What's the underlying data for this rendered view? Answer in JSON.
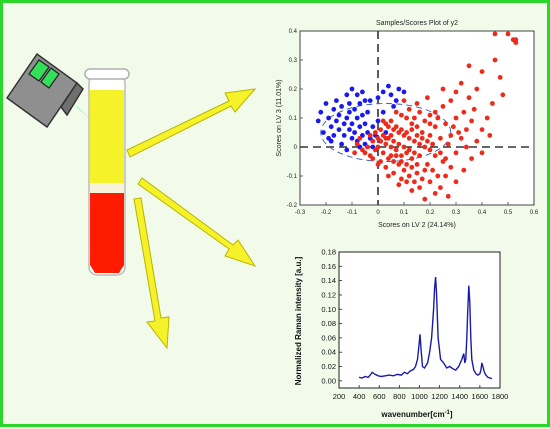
{
  "colors": {
    "border": "#2bd62b",
    "background": "#f2fbea",
    "yellow": "#f5f22a",
    "red": "#ff1b00",
    "laser_beam": "#3cf08c",
    "scores_class_a": "#1a1aee",
    "scores_class_b": "#ee2a1a",
    "spectrum_line": "#1a1aaa"
  },
  "icons": {
    "laser": "laser-head-icon",
    "tube": "test-tube-icon",
    "arrows": "yellow-arrow-icon"
  },
  "chart_data": [
    {
      "type": "scatter",
      "title": "Samples/Scores Plot of y2",
      "xlabel": "Scores on LV 2 (24.14%)",
      "ylabel": "Scores on LV 3 (11.01%)",
      "xlim": [
        -0.3,
        0.6
      ],
      "ylim": [
        -0.2,
        0.4
      ],
      "xticks": [
        "-0.3",
        "-0.2",
        "-0.1",
        "0",
        "0.1",
        "0.2",
        "0.3",
        "0.4",
        "0.5",
        "0.6"
      ],
      "yticks": [
        "-0.2",
        "-0.1",
        "0",
        "0.1",
        "0.2",
        "0.3",
        "0.4"
      ],
      "reference_lines": {
        "x": 0,
        "y": 0
      },
      "confidence_ellipse": {
        "cx": 0.03,
        "cy": 0.05,
        "rx": 0.25,
        "ry": 0.1
      },
      "series": [
        {
          "color": "blue",
          "points": [
            [
              -0.22,
              0.12
            ],
            [
              -0.2,
              0.15
            ],
            [
              -0.19,
              0.1
            ],
            [
              -0.18,
              0.07
            ],
            [
              -0.17,
              0.13
            ],
            [
              -0.16,
              0.09
            ],
            [
              -0.15,
              0.06
            ],
            [
              -0.15,
              0.11
            ],
            [
              -0.14,
              0.14
            ],
            [
              -0.13,
              0.08
            ],
            [
              -0.13,
              0.04
            ],
            [
              -0.12,
              0.1
            ],
            [
              -0.11,
              0.06
            ],
            [
              -0.11,
              0.12
            ],
            [
              -0.1,
              0.03
            ],
            [
              -0.1,
              0.08
            ],
            [
              -0.09,
              0.13
            ],
            [
              -0.09,
              0.05
            ],
            [
              -0.08,
              0.1
            ],
            [
              -0.08,
              0.02
            ],
            [
              -0.07,
              0.07
            ],
            [
              -0.07,
              0.15
            ],
            [
              -0.06,
              0.04
            ],
            [
              -0.06,
              0.11
            ],
            [
              -0.05,
              0.08
            ],
            [
              -0.05,
              0.01
            ],
            [
              -0.04,
              0.05
            ],
            [
              -0.04,
              0.12
            ],
            [
              -0.03,
              0.03
            ],
            [
              -0.02,
              0.07
            ],
            [
              -0.02,
              0.0
            ],
            [
              -0.01,
              0.04
            ],
            [
              0.0,
              0.09
            ],
            [
              0.01,
              0.02
            ],
            [
              -0.1,
              0.2
            ],
            [
              -0.08,
              0.18
            ],
            [
              -0.06,
              0.19
            ],
            [
              0.0,
              0.17
            ],
            [
              0.02,
              0.19
            ],
            [
              0.05,
              0.18
            ],
            [
              0.08,
              0.2
            ],
            [
              0.1,
              0.19
            ],
            [
              -0.12,
              0.18
            ],
            [
              -0.03,
              0.16
            ],
            [
              0.04,
              0.21
            ],
            [
              -0.21,
              0.05
            ],
            [
              -0.18,
              0.02
            ],
            [
              -0.14,
              0.01
            ],
            [
              -0.12,
              -0.01
            ],
            [
              -0.16,
              0.16
            ],
            [
              -0.19,
              0.03
            ],
            [
              -0.07,
              0.0
            ],
            [
              0.03,
              0.05
            ],
            [
              0.02,
              0.12
            ],
            [
              -0.23,
              0.09
            ],
            [
              -0.17,
              0.04
            ],
            [
              -0.11,
              0.15
            ],
            [
              -0.05,
              0.16
            ],
            [
              0.06,
              0.14
            ],
            [
              0.07,
              0.16
            ]
          ]
        },
        {
          "color": "red",
          "points": [
            [
              0.45,
              0.39
            ],
            [
              0.5,
              0.39
            ],
            [
              0.52,
              0.37
            ],
            [
              0.53,
              0.36
            ],
            [
              0.53,
              0.37
            ],
            [
              0.45,
              0.3
            ],
            [
              0.4,
              0.26
            ],
            [
              0.32,
              0.22
            ],
            [
              0.3,
              0.19
            ],
            [
              0.35,
              0.17
            ],
            [
              0.38,
              0.2
            ],
            [
              0.28,
              0.16
            ],
            [
              0.25,
              0.14
            ],
            [
              0.22,
              0.12
            ],
            [
              0.2,
              0.11
            ],
            [
              0.18,
              0.09
            ],
            [
              0.22,
              0.07
            ],
            [
              0.26,
              0.08
            ],
            [
              0.3,
              0.1
            ],
            [
              0.33,
              0.12
            ],
            [
              0.36,
              0.09
            ],
            [
              0.4,
              0.06
            ],
            [
              0.43,
              0.04
            ],
            [
              0.38,
              0.02
            ],
            [
              0.34,
              0.0
            ],
            [
              0.3,
              -0.02
            ],
            [
              0.27,
              0.01
            ],
            [
              0.24,
              0.03
            ],
            [
              0.2,
              0.04
            ],
            [
              0.17,
              0.05
            ],
            [
              0.15,
              0.07
            ],
            [
              0.13,
              0.08
            ],
            [
              0.11,
              0.1
            ],
            [
              0.09,
              0.11
            ],
            [
              0.07,
              0.12
            ],
            [
              0.05,
              0.09
            ],
            [
              0.03,
              0.08
            ],
            [
              0.06,
              0.06
            ],
            [
              0.08,
              0.05
            ],
            [
              0.1,
              0.04
            ],
            [
              0.12,
              0.03
            ],
            [
              0.14,
              0.02
            ],
            [
              0.16,
              0.01
            ],
            [
              0.18,
              0.0
            ],
            [
              0.2,
              -0.01
            ],
            [
              0.22,
              -0.03
            ],
            [
              0.25,
              -0.05
            ],
            [
              0.28,
              -0.07
            ],
            [
              0.23,
              -0.1
            ],
            [
              0.2,
              -0.12
            ],
            [
              0.18,
              -0.08
            ],
            [
              0.15,
              -0.06
            ],
            [
              0.13,
              -0.04
            ],
            [
              0.11,
              -0.02
            ],
            [
              0.09,
              -0.03
            ],
            [
              0.07,
              -0.01
            ],
            [
              0.05,
              0.0
            ],
            [
              0.03,
              0.01
            ],
            [
              0.01,
              0.02
            ],
            [
              0.0,
              0.03
            ],
            [
              -0.02,
              0.02
            ],
            [
              -0.04,
              0.0
            ],
            [
              -0.06,
              -0.01
            ],
            [
              -0.08,
              0.01
            ],
            [
              -0.05,
              -0.02
            ],
            [
              -0.03,
              -0.03
            ],
            [
              -0.01,
              -0.01
            ],
            [
              0.02,
              -0.02
            ],
            [
              0.04,
              -0.04
            ],
            [
              0.06,
              -0.05
            ],
            [
              0.08,
              -0.06
            ],
            [
              0.1,
              -0.08
            ],
            [
              0.12,
              -0.1
            ],
            [
              0.14,
              -0.12
            ],
            [
              0.16,
              -0.14
            ],
            [
              0.24,
              -0.14
            ],
            [
              0.27,
              -0.17
            ],
            [
              0.3,
              -0.12
            ],
            [
              0.33,
              -0.08
            ],
            [
              0.36,
              -0.04
            ],
            [
              0.4,
              -0.02
            ],
            [
              0.42,
              0.1
            ],
            [
              0.44,
              0.15
            ],
            [
              0.47,
              0.24
            ],
            [
              0.48,
              0.18
            ],
            [
              0.35,
              0.28
            ],
            [
              0.25,
              0.2
            ],
            [
              0.15,
              0.15
            ],
            [
              0.12,
              0.13
            ],
            [
              0.1,
              0.16
            ],
            [
              0.19,
              0.17
            ],
            [
              0.28,
              0.04
            ],
            [
              0.31,
              0.05
            ],
            [
              0.34,
              0.06
            ],
            [
              0.37,
              0.13
            ],
            [
              0.26,
              -0.1
            ],
            [
              0.22,
              -0.16
            ],
            [
              0.18,
              -0.18
            ],
            [
              0.13,
              -0.15
            ],
            [
              0.09,
              -0.11
            ],
            [
              0.06,
              -0.09
            ],
            [
              0.03,
              -0.07
            ],
            [
              0.01,
              -0.05
            ],
            [
              -0.02,
              -0.04
            ],
            [
              0.0,
              0.0
            ],
            [
              0.02,
              0.04
            ],
            [
              0.04,
              0.03
            ],
            [
              0.06,
              0.02
            ],
            [
              0.08,
              0.01
            ],
            [
              0.1,
              0.0
            ],
            [
              0.12,
              -0.01
            ],
            [
              0.14,
              -0.02
            ],
            [
              0.16,
              -0.03
            ],
            [
              0.05,
              0.04
            ],
            [
              0.07,
              0.07
            ],
            [
              0.09,
              0.06
            ],
            [
              0.11,
              0.05
            ],
            [
              0.13,
              0.06
            ],
            [
              0.15,
              0.04
            ],
            [
              0.17,
              0.03
            ],
            [
              0.19,
              0.02
            ],
            [
              0.21,
              0.01
            ],
            [
              -0.01,
              0.05
            ],
            [
              0.01,
              0.06
            ],
            [
              0.03,
              0.03
            ],
            [
              0.05,
              -0.03
            ],
            [
              0.07,
              -0.03
            ],
            [
              0.09,
              -0.05
            ],
            [
              0.11,
              -0.06
            ],
            [
              0.13,
              -0.07
            ],
            [
              0.15,
              -0.09
            ],
            [
              0.17,
              -0.11
            ],
            [
              0.19,
              -0.06
            ],
            [
              0.21,
              -0.08
            ],
            [
              0.24,
              -0.02
            ],
            [
              0.26,
              -0.04
            ],
            [
              0.29,
              0.07
            ],
            [
              0.32,
              0.03
            ],
            [
              0.2,
              0.08
            ],
            [
              0.23,
              0.1
            ],
            [
              0.16,
              0.12
            ],
            [
              0.14,
              0.1
            ],
            [
              0.04,
              0.07
            ],
            [
              0.02,
              0.09
            ],
            [
              -0.03,
              0.04
            ],
            [
              -0.07,
              0.03
            ],
            [
              -0.09,
              -0.02
            ],
            [
              0.0,
              -0.06
            ],
            [
              0.04,
              -0.1
            ],
            [
              0.08,
              -0.13
            ],
            [
              0.11,
              -0.12
            ]
          ]
        }
      ]
    },
    {
      "type": "line",
      "xlabel": "wavenumber",
      "xlabel_unit_base": "[cm",
      "xlabel_unit_exp": "-1",
      "xlabel_unit_close": "]",
      "ylabel": "Normalized Raman intensity [a.u.]",
      "xlim": [
        200,
        1800
      ],
      "ylim": [
        -0.01,
        0.18
      ],
      "xticks": [
        "200",
        "400",
        "600",
        "800",
        "1000",
        "1200",
        "1400",
        "1600",
        "1800"
      ],
      "yticks": [
        "0.00",
        "0.02",
        "0.04",
        "0.06",
        "0.08",
        "0.10",
        "0.12",
        "0.14",
        "0.16",
        "0.18"
      ],
      "series": [
        {
          "x": [
            400,
            430,
            460,
            490,
            510,
            530,
            560,
            590,
            620,
            660,
            700,
            740,
            780,
            820,
            850,
            880,
            910,
            940,
            960,
            980,
            995,
            1005,
            1015,
            1030,
            1050,
            1080,
            1100,
            1120,
            1140,
            1150,
            1160,
            1170,
            1185,
            1210,
            1240,
            1270,
            1300,
            1330,
            1360,
            1390,
            1420,
            1440,
            1450,
            1460,
            1470,
            1480,
            1490,
            1500,
            1510,
            1520,
            1540,
            1560,
            1580,
            1600,
            1610,
            1620,
            1630,
            1645,
            1660,
            1680,
            1700,
            1720
          ],
          "y": [
            0.005,
            0.004,
            0.006,
            0.005,
            0.008,
            0.012,
            0.009,
            0.007,
            0.006,
            0.007,
            0.008,
            0.007,
            0.009,
            0.008,
            0.012,
            0.01,
            0.014,
            0.016,
            0.02,
            0.03,
            0.05,
            0.065,
            0.045,
            0.02,
            0.018,
            0.025,
            0.04,
            0.06,
            0.1,
            0.13,
            0.145,
            0.12,
            0.06,
            0.03,
            0.025,
            0.018,
            0.02,
            0.017,
            0.015,
            0.02,
            0.03,
            0.038,
            0.025,
            0.03,
            0.06,
            0.1,
            0.133,
            0.11,
            0.06,
            0.03,
            0.015,
            0.01,
            0.008,
            0.01,
            0.015,
            0.025,
            0.02,
            0.012,
            0.008,
            0.005,
            0.004,
            0.003
          ]
        }
      ]
    }
  ]
}
